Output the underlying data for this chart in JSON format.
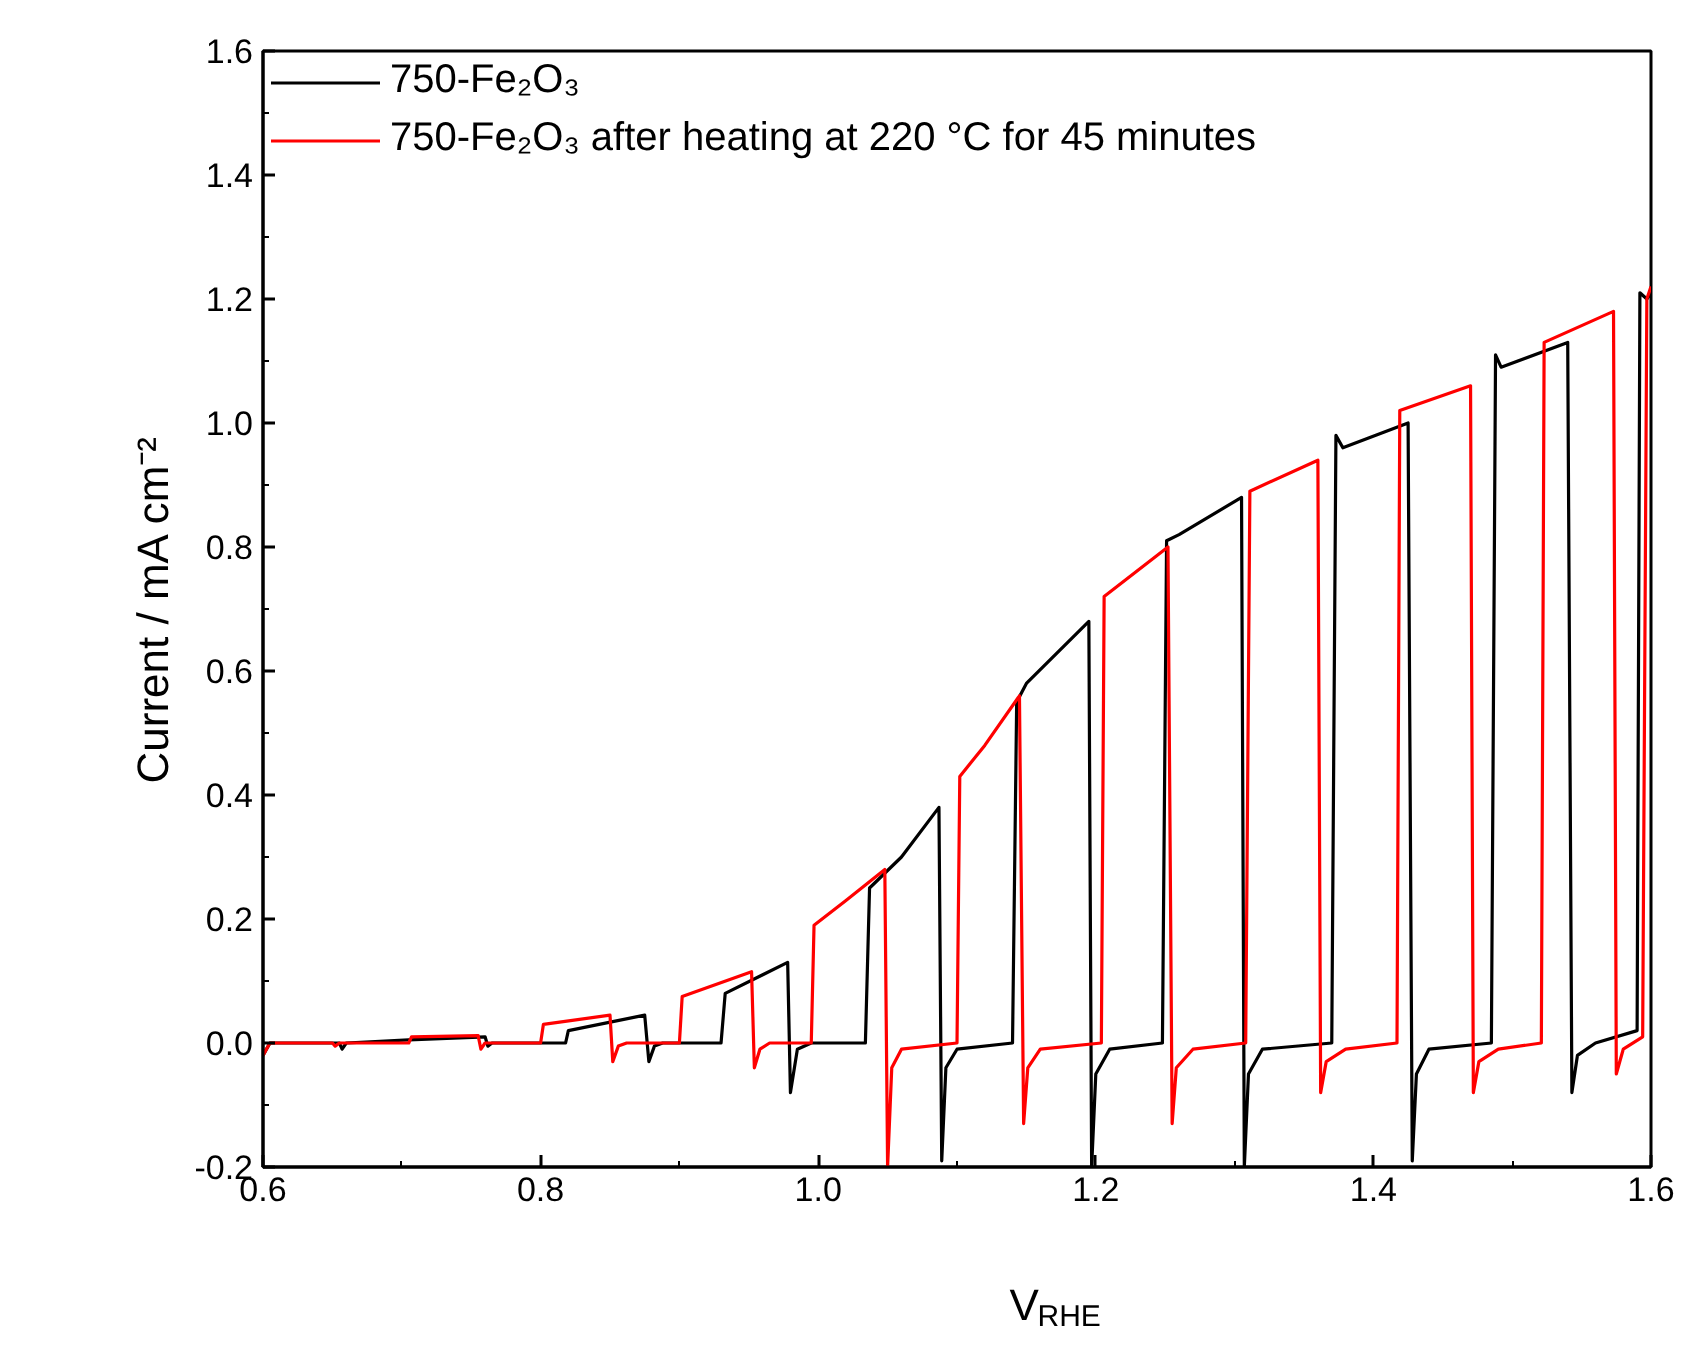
{
  "chart_data": {
    "type": "line",
    "xlabel": "V$_{RHE}$",
    "ylabel": "Current / mA cm⁻²",
    "xlim": [
      0.6,
      1.6
    ],
    "xticks": [
      0.6,
      0.8,
      {
        "value": 1.0,
        "label": "1.0"
      },
      1.2,
      1.4,
      1.6
    ],
    "ylim": [
      -0.2,
      1.6
    ],
    "yticks": [
      -0.2,
      {
        "value": 0,
        "label": "0.0"
      },
      0.2,
      0.4,
      0.6,
      0.8,
      {
        "value": 1.0,
        "label": "1.0"
      },
      1.2,
      1.4,
      1.6
    ],
    "grid": false,
    "legend": "top left",
    "line_style": "solid",
    "series": [
      {
        "name": "750-Fe₂O₃",
        "color": "#000000",
        "x": [
          0.6,
          0.605,
          0.655,
          0.657,
          0.66,
          0.705,
          0.76,
          0.762,
          0.765,
          0.818,
          0.82,
          0.875,
          0.878,
          0.882,
          0.888,
          0.93,
          0.933,
          0.978,
          0.98,
          0.985,
          0.995,
          1.034,
          1.037,
          1.06,
          1.087,
          1.089,
          1.092,
          1.1,
          1.14,
          1.143,
          1.15,
          1.195,
          1.197,
          1.2,
          1.21,
          1.248,
          1.251,
          1.26,
          1.305,
          1.307,
          1.31,
          1.32,
          1.37,
          1.373,
          1.378,
          1.425,
          1.428,
          1.431,
          1.44,
          1.485,
          1.488,
          1.492,
          1.54,
          1.543,
          1.547,
          1.56,
          1.59,
          1.592,
          1.597,
          1.6
        ],
        "values": [
          -0.02,
          0.0,
          0.0,
          -0.01,
          0.0,
          0.005,
          0.01,
          -0.005,
          0.0,
          0.0,
          0.02,
          0.045,
          -0.03,
          -0.005,
          0.0,
          0.0,
          0.08,
          0.13,
          -0.08,
          -0.01,
          0.0,
          0.0,
          0.25,
          0.3,
          0.38,
          -0.19,
          -0.04,
          -0.01,
          0.0,
          0.55,
          0.58,
          0.68,
          -0.2,
          -0.05,
          -0.01,
          0.0,
          0.81,
          0.82,
          0.88,
          -0.2,
          -0.05,
          -0.01,
          0.0,
          0.98,
          0.96,
          1.0,
          -0.19,
          -0.05,
          -0.01,
          0.0,
          1.11,
          1.09,
          1.13,
          -0.08,
          -0.02,
          0.0,
          0.02,
          1.21,
          1.2,
          1.21
        ]
      },
      {
        "name": "750-Fe₂O₃ after heating at 220 °C for 45 minutes",
        "color": "#ff0000",
        "x": [
          0.6,
          0.605,
          0.65,
          0.652,
          0.655,
          0.705,
          0.707,
          0.755,
          0.757,
          0.76,
          0.8,
          0.802,
          0.85,
          0.852,
          0.856,
          0.862,
          0.9,
          0.902,
          0.952,
          0.954,
          0.958,
          0.965,
          0.995,
          0.997,
          1.02,
          1.048,
          1.05,
          1.053,
          1.06,
          1.1,
          1.102,
          1.12,
          1.145,
          1.148,
          1.151,
          1.16,
          1.204,
          1.206,
          1.252,
          1.255,
          1.258,
          1.27,
          1.308,
          1.311,
          1.36,
          1.362,
          1.366,
          1.38,
          1.417,
          1.419,
          1.47,
          1.472,
          1.476,
          1.49,
          1.521,
          1.523,
          1.573,
          1.575,
          1.58,
          1.594,
          1.597,
          1.6
        ],
        "values": [
          -0.02,
          0.0,
          0.0,
          -0.005,
          0.0,
          0.0,
          0.01,
          0.012,
          -0.01,
          0.0,
          0.0,
          0.03,
          0.045,
          -0.03,
          -0.005,
          0.0,
          0.0,
          0.075,
          0.115,
          -0.04,
          -0.01,
          0.0,
          0.0,
          0.19,
          0.23,
          0.28,
          -0.2,
          -0.04,
          -0.01,
          0.0,
          0.43,
          0.48,
          0.56,
          -0.13,
          -0.04,
          -0.01,
          0.0,
          0.72,
          0.8,
          -0.13,
          -0.04,
          -0.01,
          0.0,
          0.89,
          0.94,
          -0.08,
          -0.03,
          -0.01,
          0.0,
          1.02,
          1.06,
          -0.08,
          -0.03,
          -0.01,
          0.0,
          1.13,
          1.18,
          -0.05,
          -0.01,
          0.01,
          1.2,
          1.22
        ]
      }
    ]
  }
}
